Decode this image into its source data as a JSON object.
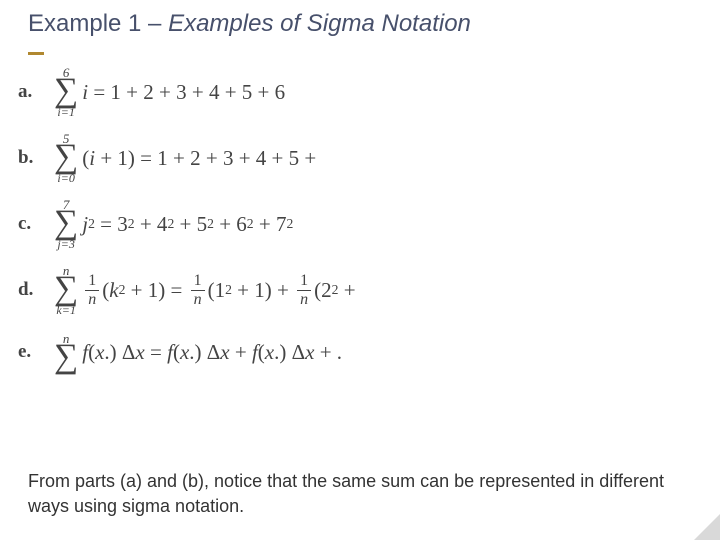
{
  "colors": {
    "title": "#47506b",
    "accent": "#b08830",
    "math": "#444444",
    "body": "#333333",
    "background": "#ffffff"
  },
  "title": {
    "prefix": "Example 1 – ",
    "italic": "Examples of Sigma Notation"
  },
  "equations": [
    {
      "label": "a.",
      "sigma": {
        "upper": "6",
        "lower": "i=1"
      },
      "summand_html": "<span class='it'>i</span>",
      "rhs_html": "&nbsp;=&nbsp;1&nbsp;+&nbsp;2&nbsp;+&nbsp;3&nbsp;+&nbsp;4&nbsp;+&nbsp;5&nbsp;+&nbsp;6"
    },
    {
      "label": "b.",
      "sigma": {
        "upper": "5",
        "lower": "i=0"
      },
      "summand_html": "(<span class='it'>i</span>&nbsp;+&nbsp;1)",
      "rhs_html": "&nbsp;=&nbsp;1&nbsp;+&nbsp;2&nbsp;+&nbsp;3&nbsp;+&nbsp;4&nbsp;+&nbsp;5&nbsp;+"
    },
    {
      "label": "c.",
      "sigma": {
        "upper": "7",
        "lower": "j=3"
      },
      "summand_html": "<span class='it'>j</span><sup>2</sup>",
      "rhs_html": "&nbsp;=&nbsp;3<sup>2</sup>&nbsp;+&nbsp;4<sup>2</sup>&nbsp;+&nbsp;5<sup>2</sup>&nbsp;+&nbsp;6<sup>2</sup>&nbsp;+&nbsp;7<sup>2</sup>"
    },
    {
      "label": "d.",
      "sigma": {
        "upper": "n",
        "lower": "k=1"
      },
      "summand_html": "<span class='frac'><span class='num'>1</span><span class='den it'>n</span></span>(<span class='it'>k</span><sup>2</sup>&nbsp;+&nbsp;1)",
      "rhs_html": "&nbsp;=&nbsp;<span class='frac'><span class='num'>1</span><span class='den it'>n</span></span>(1<sup>2</sup>&nbsp;+&nbsp;1)&nbsp;+&nbsp;<span class='frac'><span class='num'>1</span><span class='den it'>n</span></span>(2<sup>2</sup>&nbsp;+"
    },
    {
      "label": "e.",
      "sigma": {
        "upper": "n",
        "lower": ""
      },
      "summand_html": "<span class='it'>f</span>(<span class='it'>x</span>.)&nbsp;Δ<span class='it'>x</span>",
      "rhs_html": "&nbsp;=&nbsp;<span class='it'>f</span>(<span class='it'>x</span>.)&nbsp;Δ<span class='it'>x</span>&nbsp;+&nbsp;<span class='it'>f</span>(<span class='it'>x</span>.)&nbsp;Δ<span class='it'>x</span>&nbsp;+&nbsp;."
    }
  ],
  "footer": "From parts (a) and (b), notice that the same sum can be represented in different ways using sigma notation."
}
